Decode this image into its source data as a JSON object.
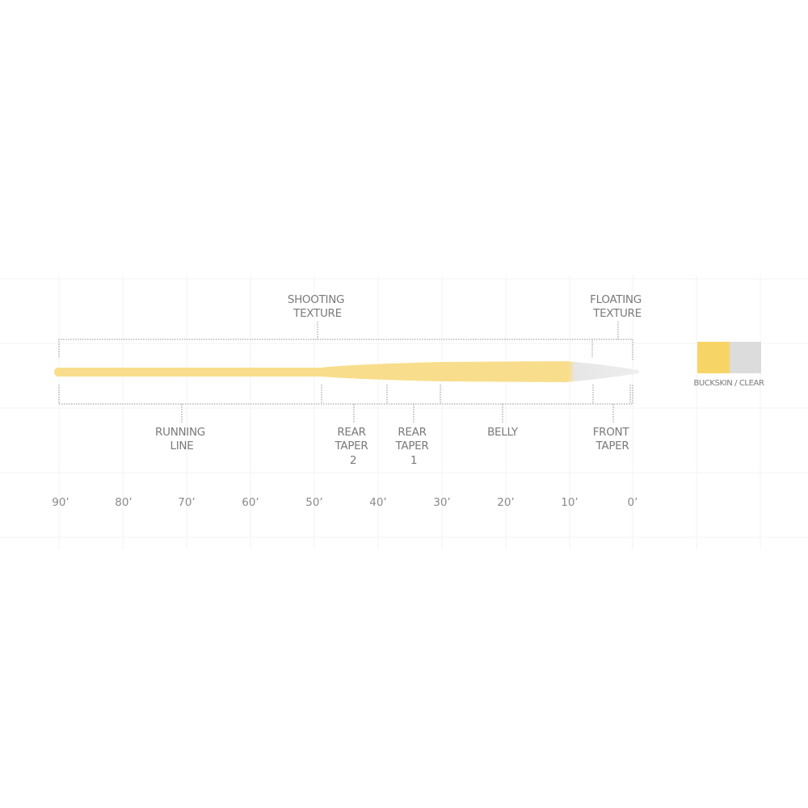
{
  "labels": {
    "shooting_texture": [
      "SHOOTING",
      "TEXTURE"
    ],
    "floating_texture": [
      "FLOATING",
      "TEXTURE"
    ],
    "running_line": [
      "RUNNING",
      "LINE"
    ],
    "rear_taper_2": [
      "REAR",
      "TAPER",
      "2"
    ],
    "rear_taper_1": [
      "REAR",
      "TAPER",
      "1"
    ],
    "belly": [
      "BELLY"
    ],
    "front_taper": [
      "FRONT",
      "TAPER"
    ]
  },
  "axis_ticks": [
    "90’",
    "80’",
    "70’",
    "60’",
    "50’",
    "40’",
    "30’",
    "20’",
    "10’",
    "0’"
  ],
  "legend": {
    "label": "BUCKSKIN / CLEAR",
    "colors": {
      "buckskin": "#f7d466",
      "clear": "#dcdcdc"
    }
  },
  "line_colors": {
    "buckskin": "#f8de8c",
    "clear": "#e6e6e6"
  }
}
